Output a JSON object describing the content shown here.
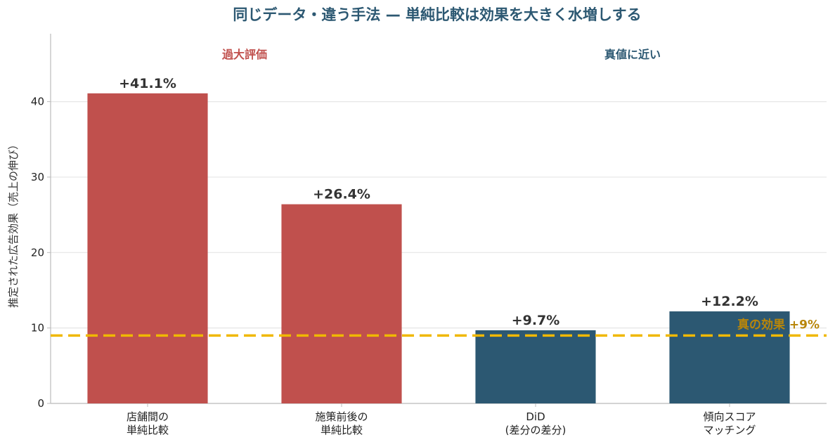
{
  "chart_data": {
    "type": "bar",
    "title": "同じデータ・違う手法 — 単純比較は効果を大きく水増しする",
    "ylabel": "推定された広告効果（売上の伸び）",
    "ylim": [
      0,
      49
    ],
    "yticks": [
      0,
      10,
      20,
      30,
      40
    ],
    "grid": true,
    "categories": [
      [
        "店舗間の",
        "単純比較"
      ],
      [
        "施策前後の",
        "単純比較"
      ],
      [
        "DiD",
        "(差分の差分)"
      ],
      [
        "傾向スコア",
        "マッチング"
      ]
    ],
    "values": [
      41.1,
      26.4,
      9.7,
      12.2
    ],
    "value_labels": [
      "+41.1%",
      "+26.4%",
      "+9.7%",
      "+12.2%"
    ],
    "bar_colors": [
      "#c0504d",
      "#c0504d",
      "#2c5872",
      "#2c5872"
    ],
    "reference_line": {
      "value": 9,
      "label": "真の効果 +9%",
      "color": "#f0b800",
      "text_color": "#b8860b"
    },
    "group_annotations": [
      {
        "text": "過大評価",
        "color": "#c0504d"
      },
      {
        "text": "真値に近い",
        "color": "#2c5872"
      }
    ]
  }
}
